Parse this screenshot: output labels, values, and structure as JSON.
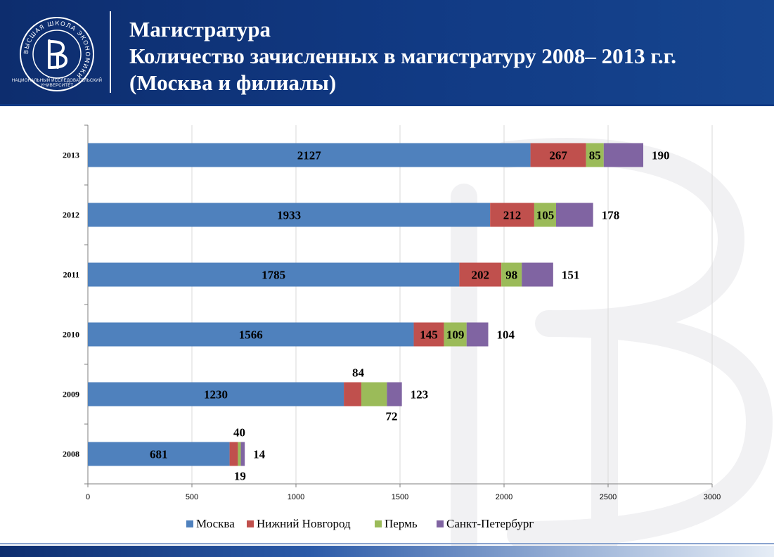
{
  "header": {
    "title_line1": "Магистратура",
    "title_line2": "Количество зачисленных  в магистратуру 2008– 2013 г.г.",
    "title_line3": "(Москва и филиалы)",
    "logo_caption": "НАЦИОНАЛЬНЫЙ ИССЛЕДОВАТЕЛЬСКИЙ УНИВЕРСИТЕТ",
    "logo_ring_text": "ВЫСШАЯ ШКОЛА ЭКОНОМИКИ"
  },
  "colors": {
    "header_bg": "#113a84",
    "moscow": "#4f81bd",
    "nizhny": "#c0504d",
    "perm": "#9bbb59",
    "spb": "#8064a2"
  },
  "chart_data": {
    "type": "bar",
    "orientation": "horizontal",
    "stacked": true,
    "categories": [
      "2013",
      "2012",
      "2011",
      "2010",
      "2009",
      "2008"
    ],
    "series": [
      {
        "name": "Москва",
        "values": [
          2127,
          1933,
          1785,
          1566,
          1230,
          681
        ]
      },
      {
        "name": "Нижний Новгород",
        "values": [
          267,
          212,
          202,
          145,
          84,
          40
        ]
      },
      {
        "name": "Пермь",
        "values": [
          85,
          105,
          98,
          109,
          123,
          14
        ]
      },
      {
        "name": "Санкт-Петербург",
        "values": [
          190,
          178,
          151,
          104,
          72,
          19
        ]
      }
    ],
    "xlim": [
      0,
      3000
    ],
    "xticks": [
      0,
      500,
      1000,
      1500,
      2000,
      2500,
      3000
    ],
    "grid": "vertical",
    "legend": "bottom",
    "title": "",
    "xlabel": "",
    "ylabel": ""
  }
}
